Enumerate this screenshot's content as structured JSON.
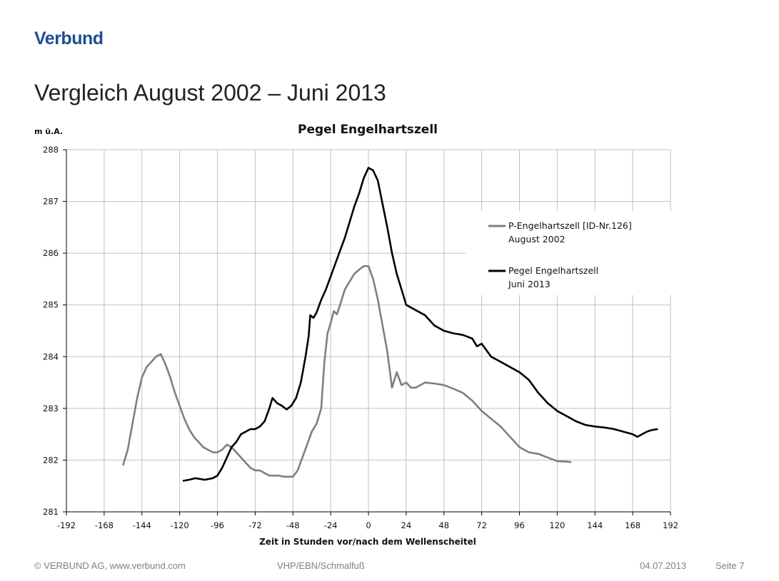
{
  "header": {
    "logo_text": "Verbund",
    "title": "Vergleich August 2002 – Juni 2013"
  },
  "footer": {
    "copyright": "© VERBUND AG, www.verbund.com",
    "author": "VHP/EBN/Schmalfuß",
    "date": "04.07.2013",
    "page": "Seite 7"
  },
  "colors": {
    "brand": "#1d4f91",
    "series_2002": "#7f7f7f",
    "series_2013": "#000000",
    "grid": "#c0c0c0"
  },
  "chart_data": {
    "type": "line",
    "title": "Pegel Engelhartszell",
    "ylabel": "m ü.A.",
    "xlabel": "Zeit in Stunden vor/nach dem Wellenscheitel",
    "xlim": [
      -192,
      192
    ],
    "ylim": [
      281,
      288
    ],
    "x_ticks": [
      -192,
      -168,
      -144,
      -120,
      -96,
      -72,
      -48,
      -24,
      0,
      24,
      48,
      72,
      96,
      120,
      144,
      168,
      192
    ],
    "y_ticks": [
      281,
      282,
      283,
      284,
      285,
      286,
      287,
      288
    ],
    "grid": true,
    "legend_position": "right",
    "series": [
      {
        "name": "P-Engelhartszell [ID-Nr.126]",
        "name_line2": "August 2002",
        "color": "#7f7f7f",
        "points": [
          [
            -156,
            281.9
          ],
          [
            -153,
            282.2
          ],
          [
            -150,
            282.7
          ],
          [
            -147,
            283.2
          ],
          [
            -144,
            283.6
          ],
          [
            -141,
            283.8
          ],
          [
            -138,
            283.9
          ],
          [
            -135,
            284.0
          ],
          [
            -132,
            284.05
          ],
          [
            -129,
            283.85
          ],
          [
            -126,
            283.6
          ],
          [
            -123,
            283.3
          ],
          [
            -120,
            283.05
          ],
          [
            -117,
            282.8
          ],
          [
            -114,
            282.6
          ],
          [
            -111,
            282.45
          ],
          [
            -108,
            282.35
          ],
          [
            -105,
            282.25
          ],
          [
            -102,
            282.2
          ],
          [
            -99,
            282.15
          ],
          [
            -96,
            282.15
          ],
          [
            -93,
            282.2
          ],
          [
            -90,
            282.3
          ],
          [
            -87,
            282.25
          ],
          [
            -84,
            282.15
          ],
          [
            -81,
            282.05
          ],
          [
            -78,
            281.95
          ],
          [
            -75,
            281.85
          ],
          [
            -72,
            281.8
          ],
          [
            -69,
            281.8
          ],
          [
            -66,
            281.75
          ],
          [
            -63,
            281.7
          ],
          [
            -60,
            281.7
          ],
          [
            -57,
            281.7
          ],
          [
            -54,
            281.68
          ],
          [
            -51,
            281.68
          ],
          [
            -48,
            281.68
          ],
          [
            -45,
            281.8
          ],
          [
            -42,
            282.05
          ],
          [
            -39,
            282.3
          ],
          [
            -36,
            282.55
          ],
          [
            -33,
            282.7
          ],
          [
            -30,
            283.0
          ],
          [
            -28,
            283.9
          ],
          [
            -26,
            284.45
          ],
          [
            -24,
            284.65
          ],
          [
            -22,
            284.88
          ],
          [
            -20,
            284.82
          ],
          [
            -18,
            285.0
          ],
          [
            -15,
            285.3
          ],
          [
            -12,
            285.45
          ],
          [
            -9,
            285.6
          ],
          [
            -6,
            285.68
          ],
          [
            -3,
            285.75
          ],
          [
            0,
            285.75
          ],
          [
            3,
            285.5
          ],
          [
            6,
            285.1
          ],
          [
            9,
            284.6
          ],
          [
            12,
            284.1
          ],
          [
            15,
            283.4
          ],
          [
            18,
            283.7
          ],
          [
            21,
            283.45
          ],
          [
            24,
            283.5
          ],
          [
            27,
            283.4
          ],
          [
            30,
            283.4
          ],
          [
            36,
            283.5
          ],
          [
            42,
            283.48
          ],
          [
            48,
            283.45
          ],
          [
            54,
            283.38
          ],
          [
            60,
            283.3
          ],
          [
            66,
            283.15
          ],
          [
            72,
            282.95
          ],
          [
            78,
            282.8
          ],
          [
            84,
            282.65
          ],
          [
            90,
            282.45
          ],
          [
            96,
            282.25
          ],
          [
            102,
            282.15
          ],
          [
            108,
            282.12
          ],
          [
            114,
            282.05
          ],
          [
            120,
            281.98
          ],
          [
            126,
            281.97
          ],
          [
            129,
            281.96
          ]
        ]
      },
      {
        "name": "Pegel Engelhartszell",
        "name_line2": "Juni 2013",
        "color": "#000000",
        "points": [
          [
            -118,
            281.6
          ],
          [
            -114,
            281.62
          ],
          [
            -110,
            281.65
          ],
          [
            -104,
            281.62
          ],
          [
            -99,
            281.65
          ],
          [
            -96,
            281.7
          ],
          [
            -93,
            281.85
          ],
          [
            -90,
            282.05
          ],
          [
            -87,
            282.25
          ],
          [
            -84,
            282.35
          ],
          [
            -81,
            282.5
          ],
          [
            -78,
            282.55
          ],
          [
            -75,
            282.6
          ],
          [
            -72,
            282.6
          ],
          [
            -69,
            282.65
          ],
          [
            -66,
            282.75
          ],
          [
            -63,
            283.0
          ],
          [
            -61,
            283.2
          ],
          [
            -58,
            283.1
          ],
          [
            -55,
            283.05
          ],
          [
            -52,
            282.98
          ],
          [
            -49,
            283.05
          ],
          [
            -46,
            283.2
          ],
          [
            -43,
            283.5
          ],
          [
            -40,
            284.0
          ],
          [
            -38,
            284.4
          ],
          [
            -37,
            284.8
          ],
          [
            -35,
            284.75
          ],
          [
            -33,
            284.85
          ],
          [
            -30,
            285.1
          ],
          [
            -27,
            285.3
          ],
          [
            -24,
            285.55
          ],
          [
            -21,
            285.8
          ],
          [
            -18,
            286.05
          ],
          [
            -15,
            286.3
          ],
          [
            -12,
            286.6
          ],
          [
            -9,
            286.9
          ],
          [
            -6,
            287.15
          ],
          [
            -3,
            287.45
          ],
          [
            0,
            287.65
          ],
          [
            3,
            287.6
          ],
          [
            6,
            287.4
          ],
          [
            9,
            286.95
          ],
          [
            12,
            286.5
          ],
          [
            15,
            286.0
          ],
          [
            18,
            285.6
          ],
          [
            21,
            285.3
          ],
          [
            24,
            285.0
          ],
          [
            30,
            284.9
          ],
          [
            36,
            284.8
          ],
          [
            42,
            284.6
          ],
          [
            48,
            284.5
          ],
          [
            54,
            284.45
          ],
          [
            60,
            284.42
          ],
          [
            66,
            284.35
          ],
          [
            69,
            284.2
          ],
          [
            72,
            284.25
          ],
          [
            78,
            284.0
          ],
          [
            84,
            283.9
          ],
          [
            90,
            283.8
          ],
          [
            96,
            283.7
          ],
          [
            102,
            283.55
          ],
          [
            108,
            283.3
          ],
          [
            114,
            283.1
          ],
          [
            120,
            282.95
          ],
          [
            126,
            282.85
          ],
          [
            132,
            282.75
          ],
          [
            138,
            282.68
          ],
          [
            144,
            282.65
          ],
          [
            150,
            282.63
          ],
          [
            156,
            282.6
          ],
          [
            162,
            282.55
          ],
          [
            168,
            282.5
          ],
          [
            171,
            282.45
          ],
          [
            174,
            282.5
          ],
          [
            177,
            282.55
          ],
          [
            180,
            282.58
          ],
          [
            184,
            282.6
          ]
        ]
      }
    ]
  }
}
